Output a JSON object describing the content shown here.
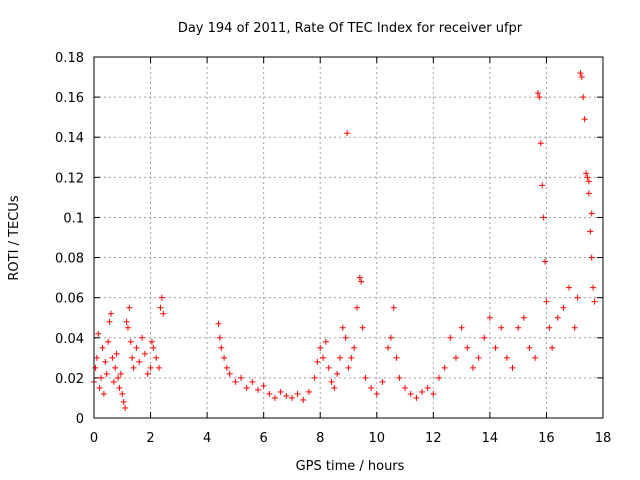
{
  "chart_data": {
    "type": "scatter",
    "title": "Day 194 of 2011, Rate Of TEC Index for receiver ufpr",
    "xlabel": "GPS time / hours",
    "ylabel": "ROTI / TECUs",
    "xlim": [
      0,
      18
    ],
    "ylim": [
      0,
      0.18
    ],
    "x_ticks": [
      "0",
      "2",
      "4",
      "6",
      "8",
      "10",
      "12",
      "14",
      "16",
      "18"
    ],
    "y_ticks": [
      "0",
      "0.02",
      "0.04",
      "0.06",
      "0.08",
      "0.1",
      "0.12",
      "0.14",
      "0.16",
      "0.18"
    ],
    "grid": true,
    "marker": "+",
    "color": "#ff0000",
    "series": [
      {
        "points": [
          [
            0.0,
            0.018
          ],
          [
            0.05,
            0.025
          ],
          [
            0.1,
            0.03
          ],
          [
            0.15,
            0.042
          ],
          [
            0.2,
            0.015
          ],
          [
            0.25,
            0.02
          ],
          [
            0.3,
            0.035
          ],
          [
            0.35,
            0.012
          ],
          [
            0.4,
            0.028
          ],
          [
            0.45,
            0.022
          ],
          [
            0.5,
            0.038
          ],
          [
            0.55,
            0.048
          ],
          [
            0.6,
            0.052
          ],
          [
            0.65,
            0.03
          ],
          [
            0.7,
            0.018
          ],
          [
            0.75,
            0.025
          ],
          [
            0.8,
            0.032
          ],
          [
            0.85,
            0.02
          ],
          [
            0.9,
            0.015
          ],
          [
            0.95,
            0.022
          ],
          [
            1.0,
            0.012
          ],
          [
            1.05,
            0.008
          ],
          [
            1.1,
            0.005
          ],
          [
            1.15,
            0.048
          ],
          [
            1.2,
            0.045
          ],
          [
            1.25,
            0.055
          ],
          [
            1.3,
            0.038
          ],
          [
            1.35,
            0.03
          ],
          [
            1.4,
            0.025
          ],
          [
            1.5,
            0.035
          ],
          [
            1.6,
            0.028
          ],
          [
            1.7,
            0.04
          ],
          [
            1.8,
            0.032
          ],
          [
            1.9,
            0.022
          ],
          [
            2.0,
            0.025
          ],
          [
            2.05,
            0.038
          ],
          [
            2.1,
            0.035
          ],
          [
            2.2,
            0.03
          ],
          [
            2.3,
            0.025
          ],
          [
            2.35,
            0.055
          ],
          [
            2.4,
            0.06
          ],
          [
            2.45,
            0.052
          ],
          [
            4.4,
            0.047
          ],
          [
            4.45,
            0.04
          ],
          [
            4.5,
            0.035
          ],
          [
            4.6,
            0.03
          ],
          [
            4.7,
            0.025
          ],
          [
            4.8,
            0.022
          ],
          [
            5.0,
            0.018
          ],
          [
            5.2,
            0.02
          ],
          [
            5.4,
            0.015
          ],
          [
            5.6,
            0.018
          ],
          [
            5.8,
            0.014
          ],
          [
            6.0,
            0.016
          ],
          [
            6.2,
            0.012
          ],
          [
            6.4,
            0.01
          ],
          [
            6.6,
            0.013
          ],
          [
            6.8,
            0.011
          ],
          [
            7.0,
            0.01
          ],
          [
            7.2,
            0.012
          ],
          [
            7.4,
            0.009
          ],
          [
            7.6,
            0.013
          ],
          [
            7.8,
            0.02
          ],
          [
            7.9,
            0.028
          ],
          [
            8.0,
            0.035
          ],
          [
            8.1,
            0.03
          ],
          [
            8.2,
            0.038
          ],
          [
            8.3,
            0.025
          ],
          [
            8.4,
            0.018
          ],
          [
            8.5,
            0.015
          ],
          [
            8.6,
            0.022
          ],
          [
            8.7,
            0.03
          ],
          [
            8.8,
            0.045
          ],
          [
            8.9,
            0.04
          ],
          [
            8.95,
            0.142
          ],
          [
            9.0,
            0.025
          ],
          [
            9.1,
            0.03
          ],
          [
            9.2,
            0.035
          ],
          [
            9.3,
            0.055
          ],
          [
            9.4,
            0.07
          ],
          [
            9.45,
            0.068
          ],
          [
            9.5,
            0.045
          ],
          [
            9.6,
            0.02
          ],
          [
            9.8,
            0.015
          ],
          [
            10.0,
            0.012
          ],
          [
            10.2,
            0.018
          ],
          [
            10.4,
            0.035
          ],
          [
            10.5,
            0.04
          ],
          [
            10.6,
            0.055
          ],
          [
            10.7,
            0.03
          ],
          [
            10.8,
            0.02
          ],
          [
            11.0,
            0.015
          ],
          [
            11.2,
            0.012
          ],
          [
            11.4,
            0.01
          ],
          [
            11.6,
            0.013
          ],
          [
            11.8,
            0.015
          ],
          [
            12.0,
            0.012
          ],
          [
            12.2,
            0.02
          ],
          [
            12.4,
            0.025
          ],
          [
            12.6,
            0.04
          ],
          [
            12.8,
            0.03
          ],
          [
            13.0,
            0.045
          ],
          [
            13.2,
            0.035
          ],
          [
            13.4,
            0.025
          ],
          [
            13.6,
            0.03
          ],
          [
            13.8,
            0.04
          ],
          [
            14.0,
            0.05
          ],
          [
            14.2,
            0.035
          ],
          [
            14.4,
            0.045
          ],
          [
            14.6,
            0.03
          ],
          [
            14.8,
            0.025
          ],
          [
            15.0,
            0.045
          ],
          [
            15.2,
            0.05
          ],
          [
            15.4,
            0.035
          ],
          [
            15.6,
            0.03
          ],
          [
            15.7,
            0.162
          ],
          [
            15.75,
            0.16
          ],
          [
            15.8,
            0.137
          ],
          [
            15.85,
            0.116
          ],
          [
            15.9,
            0.1
          ],
          [
            15.95,
            0.078
          ],
          [
            16.0,
            0.058
          ],
          [
            16.1,
            0.045
          ],
          [
            16.2,
            0.035
          ],
          [
            16.4,
            0.05
          ],
          [
            16.6,
            0.055
          ],
          [
            16.8,
            0.065
          ],
          [
            17.0,
            0.045
          ],
          [
            17.1,
            0.06
          ],
          [
            17.2,
            0.172
          ],
          [
            17.25,
            0.17
          ],
          [
            17.3,
            0.16
          ],
          [
            17.35,
            0.149
          ],
          [
            17.4,
            0.122
          ],
          [
            17.45,
            0.12
          ],
          [
            17.5,
            0.118
          ],
          [
            17.55,
            0.093
          ],
          [
            17.6,
            0.08
          ],
          [
            17.65,
            0.065
          ],
          [
            17.7,
            0.058
          ],
          [
            17.6,
            0.102
          ],
          [
            17.5,
            0.112
          ]
        ]
      }
    ]
  }
}
